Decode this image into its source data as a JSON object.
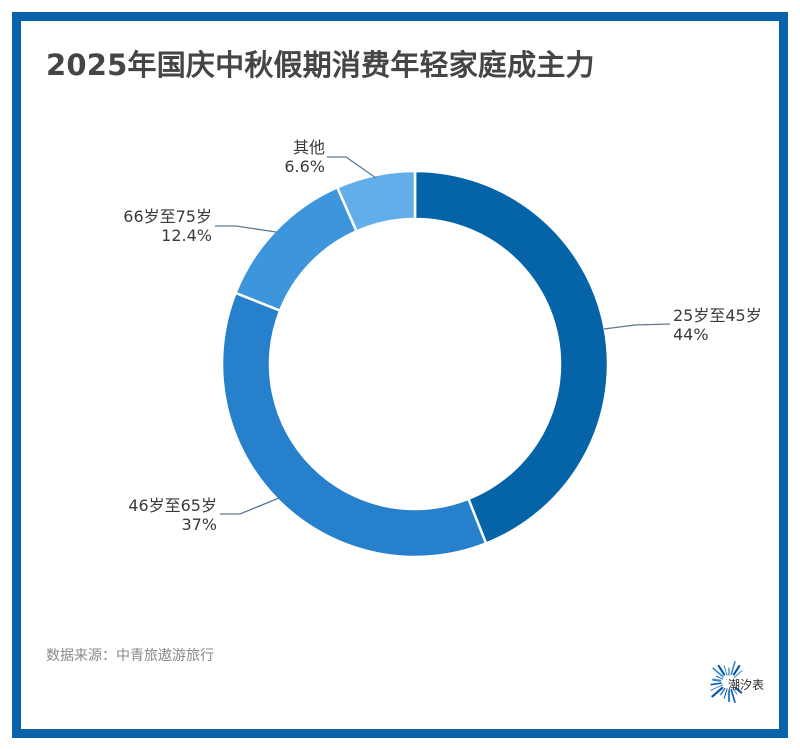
{
  "title": "2025年国庆中秋假期消费年轻家庭成主力",
  "source": "数据来源：中青旅遨游旅行",
  "logo": {
    "text": "潮汐表",
    "icon": "burst-icon"
  },
  "colors": {
    "frame": "#0a62a8",
    "title": "#454545",
    "leader_line": "#5a7a95"
  },
  "chart_data": {
    "type": "pie",
    "subtype": "donut",
    "title": "2025年国庆中秋假期消费年轻家庭成主力",
    "start_angle": "top (12 o'clock), clockwise",
    "categories": [
      "25岁至45岁",
      "46岁至65岁",
      "66岁至75岁",
      "其他"
    ],
    "values": [
      44,
      37,
      12.4,
      6.6
    ],
    "value_labels": [
      "44%",
      "37%",
      "12.4%",
      "6.6%"
    ],
    "colors": [
      "#0563a8",
      "#2680cc",
      "#3d95db",
      "#62aeea"
    ],
    "legend": "none (direct labels with leader lines)",
    "source": "数据来源：中青旅遨游旅行"
  },
  "labels": [
    {
      "name": "25岁至45岁",
      "value": "44%"
    },
    {
      "name": "46岁至65岁",
      "value": "37%"
    },
    {
      "name": "66岁至75岁",
      "value": "12.4%"
    },
    {
      "name": "其他",
      "value": "6.6%"
    }
  ]
}
